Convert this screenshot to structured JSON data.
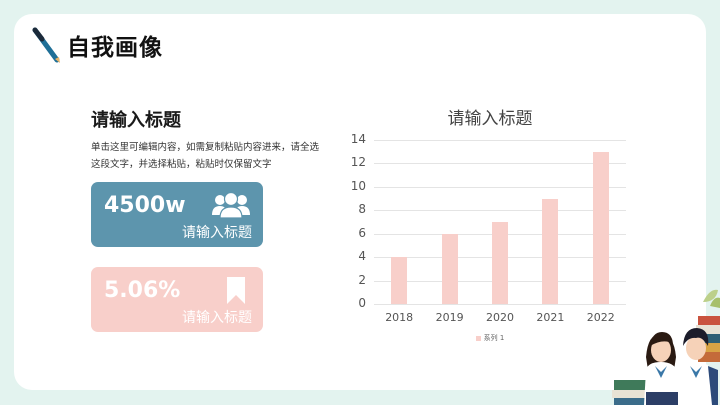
{
  "header": {
    "icon": "pen-icon",
    "title": "自我画像"
  },
  "section": {
    "title": "请输入标题",
    "description": "单击这里可编辑内容，如需复制粘贴内容进来，请全选这段文字，并选择粘贴，粘贴时仅保留文字"
  },
  "stats": [
    {
      "value": "4500w",
      "label": "请输入标题",
      "icon": "people-group-icon",
      "color": "#5d95ad"
    },
    {
      "value": "5.06%",
      "label": "请输入标题",
      "icon": "bookmark-icon",
      "color": "#f8cfca"
    }
  ],
  "chart_data": {
    "type": "bar",
    "title": "请输入标题",
    "categories": [
      "2018",
      "2019",
      "2020",
      "2021",
      "2022"
    ],
    "series": [
      {
        "name": "系列 1",
        "values": [
          4,
          6,
          7,
          9,
          13
        ],
        "color": "#f8cfca"
      }
    ],
    "xlabel": "",
    "ylabel": "",
    "ylim": [
      0,
      14
    ],
    "yticks": [
      "0",
      "2",
      "4",
      "6",
      "8",
      "10",
      "12",
      "14"
    ],
    "grid": true,
    "legend_position": "bottom"
  },
  "colors": {
    "background": "#e3f3ef",
    "card": "#ffffff",
    "accent_blue": "#5d95ad",
    "accent_pink": "#f8cfca"
  }
}
